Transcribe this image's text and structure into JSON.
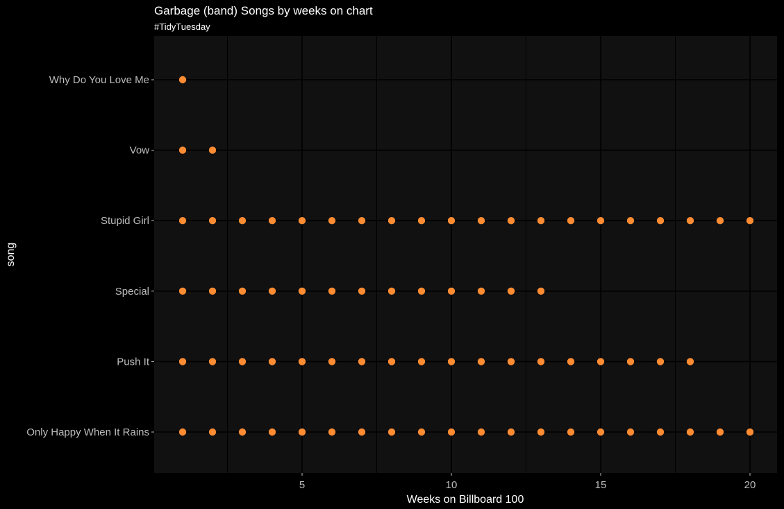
{
  "chart_data": {
    "type": "scatter",
    "title": "Garbage (band) Songs by weeks on chart",
    "subtitle": "#TidyTuesday",
    "xlabel": "Weeks on Billboard 100",
    "ylabel": "song",
    "categories": [
      "Only Happy When It Rains",
      "Push It",
      "Special",
      "Stupid Girl",
      "Vow",
      "Why Do You Love Me"
    ],
    "x_ticks": [
      5,
      10,
      15,
      20
    ],
    "xlim": [
      0.1,
      21
    ],
    "grid": true,
    "points": [
      {
        "song": "Why Do You Love Me",
        "weeks": [
          1
        ]
      },
      {
        "song": "Vow",
        "weeks": [
          1,
          2
        ]
      },
      {
        "song": "Stupid Girl",
        "weeks": [
          1,
          2,
          3,
          4,
          5,
          6,
          7,
          8,
          9,
          10,
          11,
          12,
          13,
          14,
          15,
          16,
          17,
          18,
          19,
          20
        ]
      },
      {
        "song": "Special",
        "weeks": [
          1,
          2,
          3,
          4,
          5,
          6,
          7,
          8,
          9,
          10,
          11,
          12,
          13
        ]
      },
      {
        "song": "Push It",
        "weeks": [
          1,
          2,
          3,
          4,
          5,
          6,
          7,
          8,
          9,
          10,
          11,
          12,
          13,
          14,
          15,
          16,
          17,
          18
        ]
      },
      {
        "song": "Only Happy When It Rains",
        "weeks": [
          1,
          2,
          3,
          4,
          5,
          6,
          7,
          8,
          9,
          10,
          11,
          12,
          13,
          14,
          15,
          16,
          17,
          18,
          19,
          20
        ]
      }
    ],
    "colors": {
      "point": "#ff8c33",
      "panel": "#111111",
      "background": "#000000",
      "grid": "#000000"
    }
  }
}
